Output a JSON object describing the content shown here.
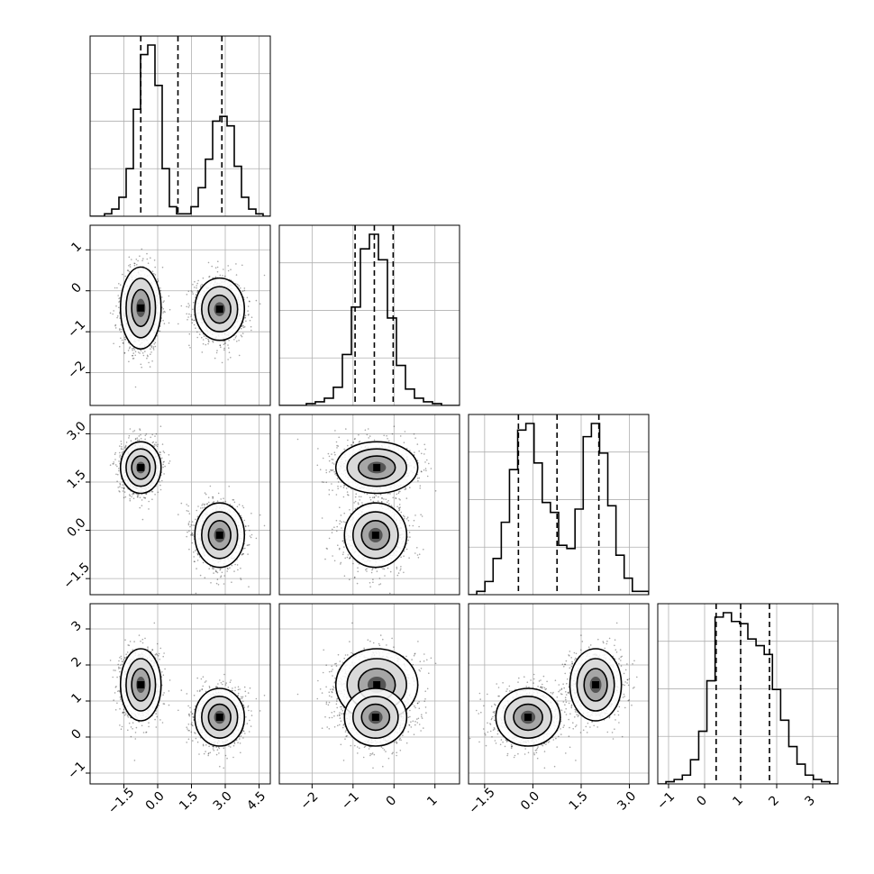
{
  "chart_data": {
    "type": "corner",
    "parameters": 4,
    "ranges": [
      [
        -3.0,
        5.0
      ],
      [
        -2.8,
        1.6
      ],
      [
        -2.0,
        3.6
      ],
      [
        -1.3,
        3.7
      ]
    ],
    "ticks": [
      {
        "values": [
          -1.5,
          0.0,
          1.5,
          3.0,
          4.5
        ],
        "labels": [
          "−1.5",
          "0.0",
          "1.5",
          "3.0",
          "4.5"
        ]
      },
      {
        "values": [
          -2,
          -1,
          0,
          1
        ],
        "labels": [
          "−2",
          "−1",
          "0",
          "1"
        ]
      },
      {
        "values": [
          -1.5,
          0.0,
          1.5,
          3.0
        ],
        "labels": [
          "−1.5",
          "0.0",
          "1.5",
          "3.0"
        ]
      },
      {
        "values": [
          -1,
          0,
          1,
          2,
          3
        ],
        "labels": [
          "−1",
          "0",
          "1",
          "2",
          "3"
        ]
      }
    ],
    "quantiles": [
      [
        -0.75,
        0.9,
        2.85
      ],
      [
        -0.95,
        -0.48,
        -0.02
      ],
      [
        -0.45,
        0.75,
        2.05
      ],
      [
        0.32,
        1.0,
        1.8
      ]
    ],
    "histograms": [
      {
        "edges_min": -3.0,
        "edges_max": 5.0,
        "counts": [
          0,
          0,
          1,
          3,
          8,
          20,
          45,
          68,
          72,
          55,
          20,
          4,
          1,
          1,
          4,
          12,
          24,
          40,
          42,
          38,
          21,
          8,
          3,
          1,
          0
        ]
      },
      {
        "edges_min": -2.8,
        "edges_max": 1.6,
        "counts": [
          0,
          0,
          0,
          1,
          2,
          4,
          10,
          28,
          54,
          86,
          94,
          80,
          48,
          22,
          9,
          4,
          2,
          1,
          0,
          0
        ]
      },
      {
        "edges_min": -2.0,
        "edges_max": 3.6,
        "counts": [
          0,
          1,
          4,
          11,
          22,
          38,
          50,
          52,
          40,
          28,
          25,
          15,
          14,
          26,
          48,
          52,
          43,
          27,
          12,
          5,
          1,
          1
        ]
      },
      {
        "edges_min": -1.3,
        "edges_max": 3.7,
        "counts": [
          0,
          1,
          2,
          4,
          11,
          24,
          47,
          76,
          78,
          74,
          73,
          66,
          63,
          59,
          43,
          29,
          17,
          9,
          4,
          2,
          1,
          0
        ]
      }
    ],
    "modes": [
      {
        "weight": 0.52,
        "mean": [
          -0.75,
          -0.42,
          1.95,
          1.45
        ],
        "sd": [
          0.45,
          0.5,
          0.4,
          0.5
        ]
      },
      {
        "weight": 0.48,
        "mean": [
          2.75,
          -0.45,
          -0.15,
          0.55
        ],
        "sd": [
          0.55,
          0.38,
          0.5,
          0.4
        ]
      }
    ],
    "grid": true,
    "quantile_lines": "dashed",
    "points_color": "#000000",
    "contour_levels": 3
  }
}
